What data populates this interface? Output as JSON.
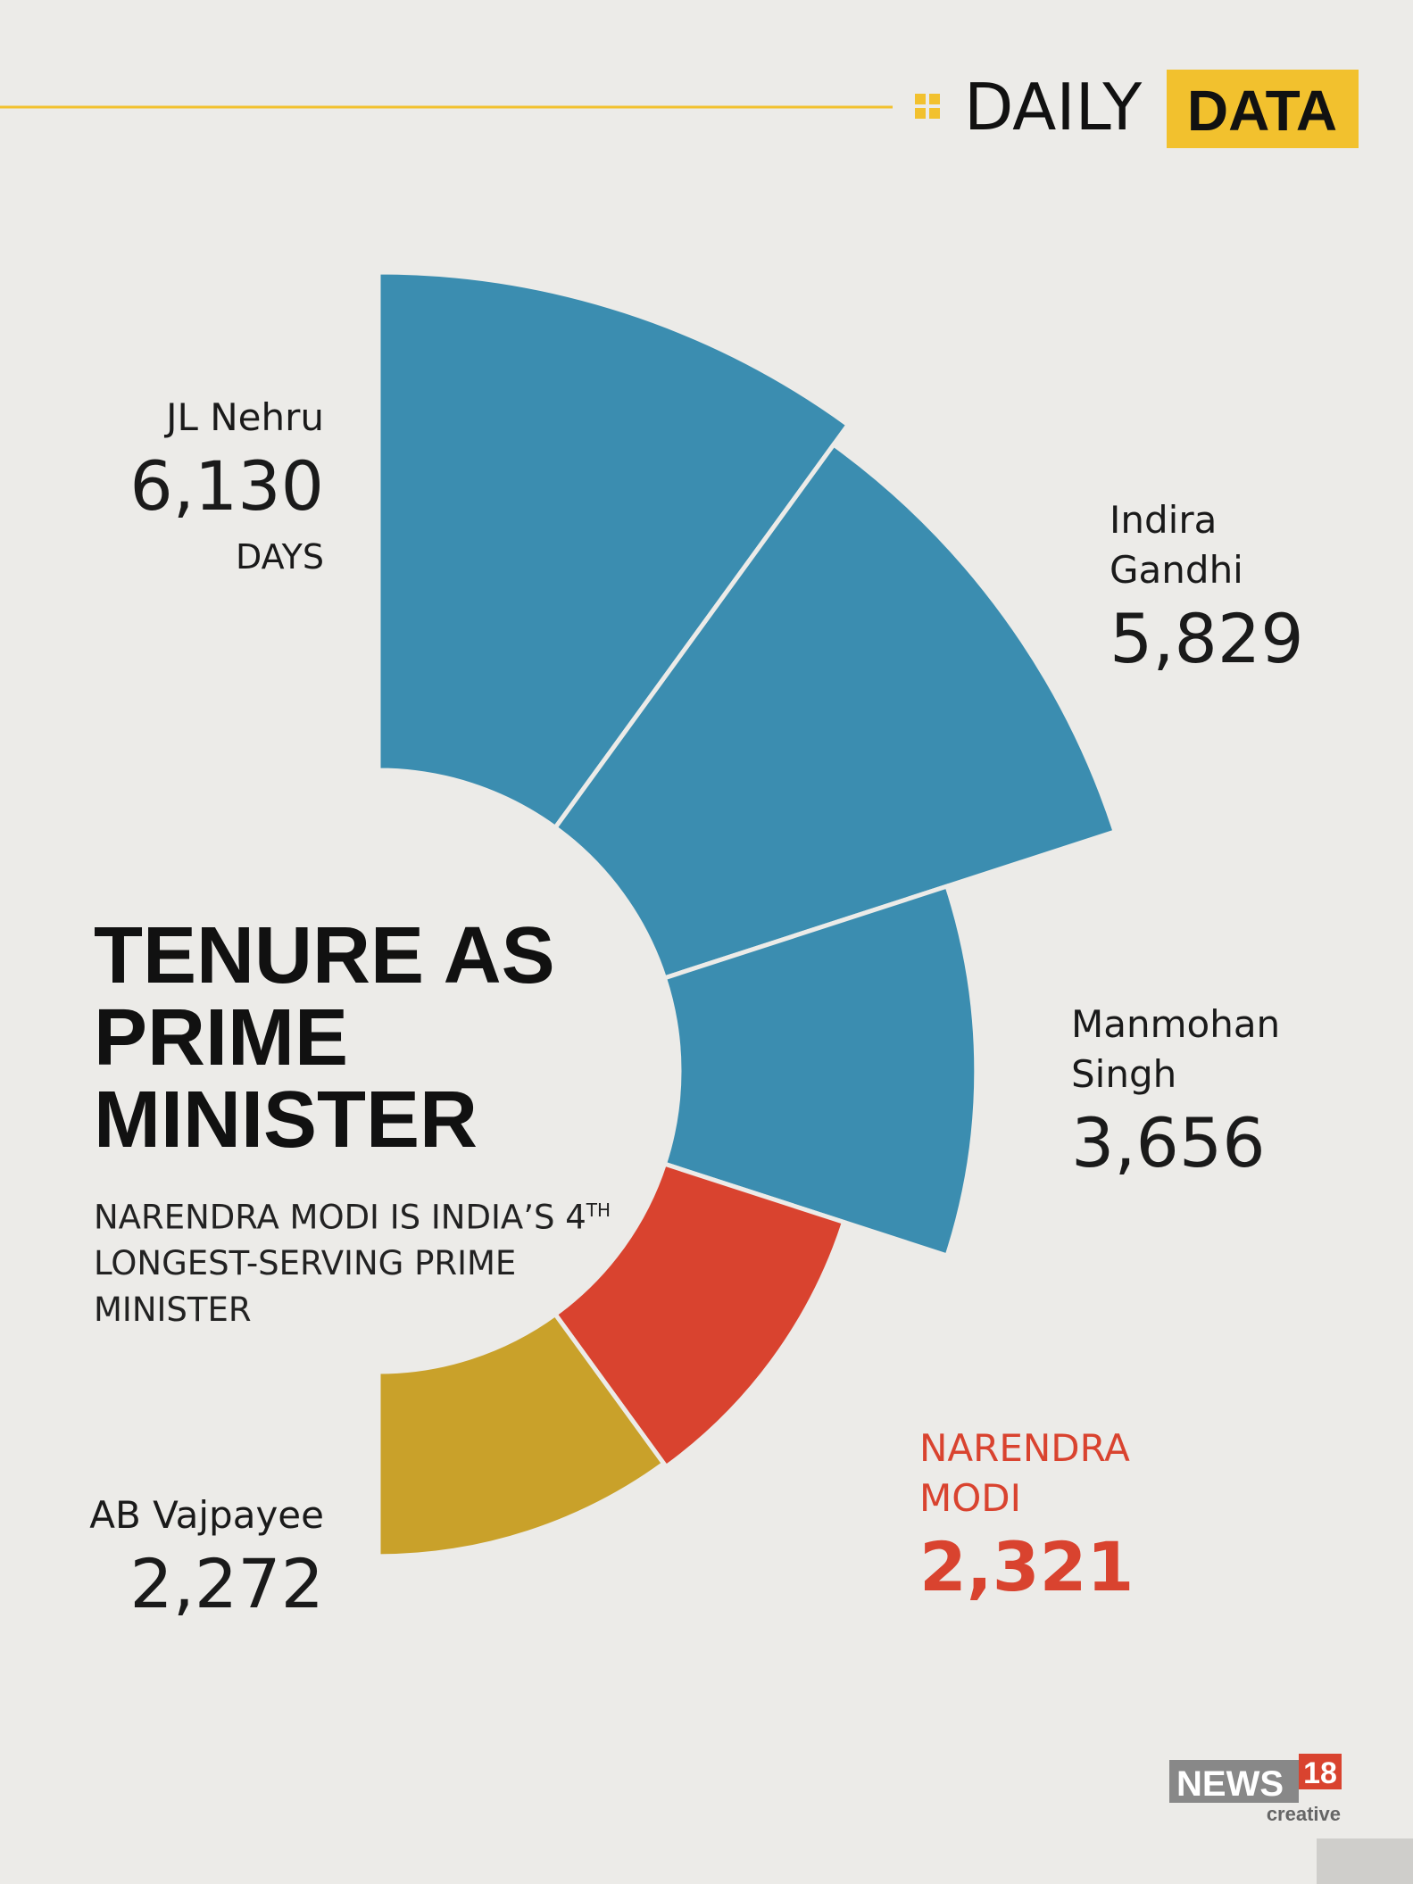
{
  "header": {
    "left": "DAILY",
    "right": "DATA"
  },
  "chart_data": {
    "type": "radial-bar",
    "title": "TENURE AS PRIME MINISTER",
    "subtitle": [
      "NARENDRA MODI IS INDIA’S 4",
      "TH",
      " LONGEST-SERVING PRIME MINISTER"
    ],
    "unit_label": "DAYS",
    "categories": [
      "JL Nehru",
      "Indira Gandhi",
      "Manmohan Singh",
      "NARENDRA MODI",
      "AB Vajpayee"
    ],
    "values": [
      6130,
      5829,
      3656,
      2321,
      2272
    ],
    "value_labels": [
      "6,130",
      "5,829",
      "3,656",
      "2,321",
      "2,272"
    ],
    "colors": [
      "#3b8db0",
      "#3b8db0",
      "#3b8db0",
      "#d9432f",
      "#c9a12a"
    ]
  },
  "logo": {
    "name": "NEWS",
    "number": "18",
    "tag": "creative"
  }
}
